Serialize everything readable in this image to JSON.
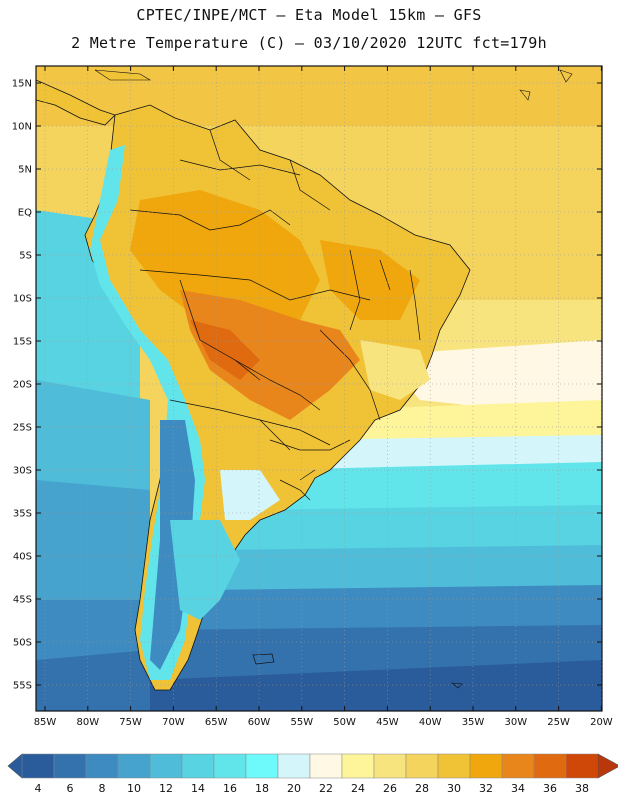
{
  "header": {
    "line1": "CPTEC/INPE/MCT –  Eta Model 15km – GFS",
    "line2": "2 Metre Temperature (C) – 03/10/2020 12UTC fct=179h"
  },
  "map": {
    "lat_labels": [
      "15N",
      "10N",
      "5N",
      "EQ",
      "5S",
      "10S",
      "15S",
      "20S",
      "25S",
      "30S",
      "35S",
      "40S",
      "45S",
      "50S",
      "55S"
    ],
    "lon_labels": [
      "85W",
      "80W",
      "75W",
      "70W",
      "65W",
      "60W",
      "55W",
      "50W",
      "45W",
      "40W",
      "35W",
      "30W",
      "25W",
      "20W"
    ]
  },
  "colorbar": {
    "labels": [
      "4",
      "6",
      "8",
      "10",
      "12",
      "14",
      "16",
      "18",
      "20",
      "22",
      "24",
      "26",
      "28",
      "30",
      "32",
      "34",
      "36",
      "38"
    ],
    "colors": [
      "#2a5b9a",
      "#3472ad",
      "#3d8bc0",
      "#45a3ce",
      "#4fbdd9",
      "#58d3e2",
      "#62e5ea",
      "#6efafa",
      "#d4f6fa",
      "#fff8e4",
      "#fef59a",
      "#f8e47e",
      "#f4d45c",
      "#f0c236",
      "#f0a70d",
      "#e8861c",
      "#e06a10",
      "#d04808",
      "#b8380c"
    ]
  }
}
